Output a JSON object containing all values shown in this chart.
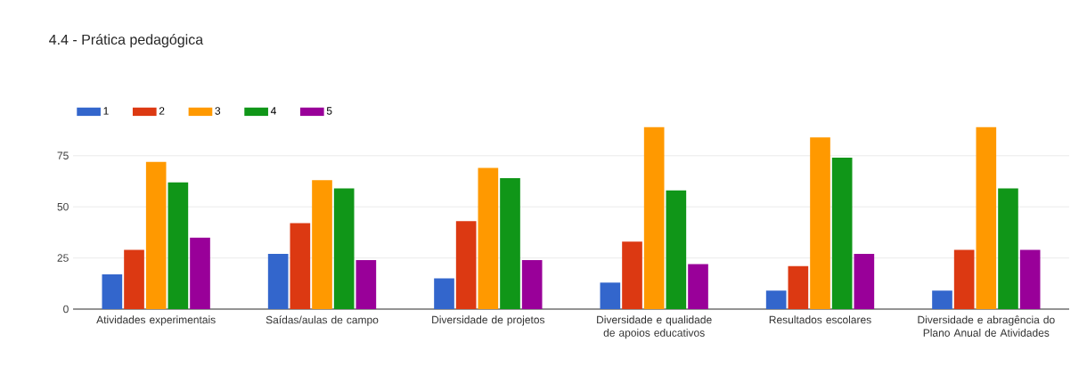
{
  "chart_data": {
    "type": "bar",
    "title": "4.4 - Prática pedagógica",
    "categories": [
      "Atividades experimentais",
      "Saídas/aulas de campo",
      "Diversidade de projetos",
      "Diversidade e qualidade de apoios educativos",
      "Resultados escolares",
      "Diversidade e abragência do Plano Anual de Atividades"
    ],
    "series": [
      {
        "name": "1",
        "color": "#3366cc",
        "values": [
          17,
          27,
          15,
          13,
          9,
          9
        ]
      },
      {
        "name": "2",
        "color": "#dc3912",
        "values": [
          29,
          42,
          43,
          33,
          21,
          29
        ]
      },
      {
        "name": "3",
        "color": "#ff9900",
        "values": [
          72,
          63,
          69,
          89,
          84,
          89
        ]
      },
      {
        "name": "4",
        "color": "#109618",
        "values": [
          62,
          59,
          64,
          58,
          74,
          59
        ]
      },
      {
        "name": "5",
        "color": "#990099",
        "values": [
          35,
          24,
          24,
          22,
          27,
          29
        ]
      }
    ],
    "ylim": [
      0,
      90
    ],
    "yticks": [
      0,
      25,
      50,
      75
    ],
    "grid": "y",
    "legend": "top left"
  }
}
